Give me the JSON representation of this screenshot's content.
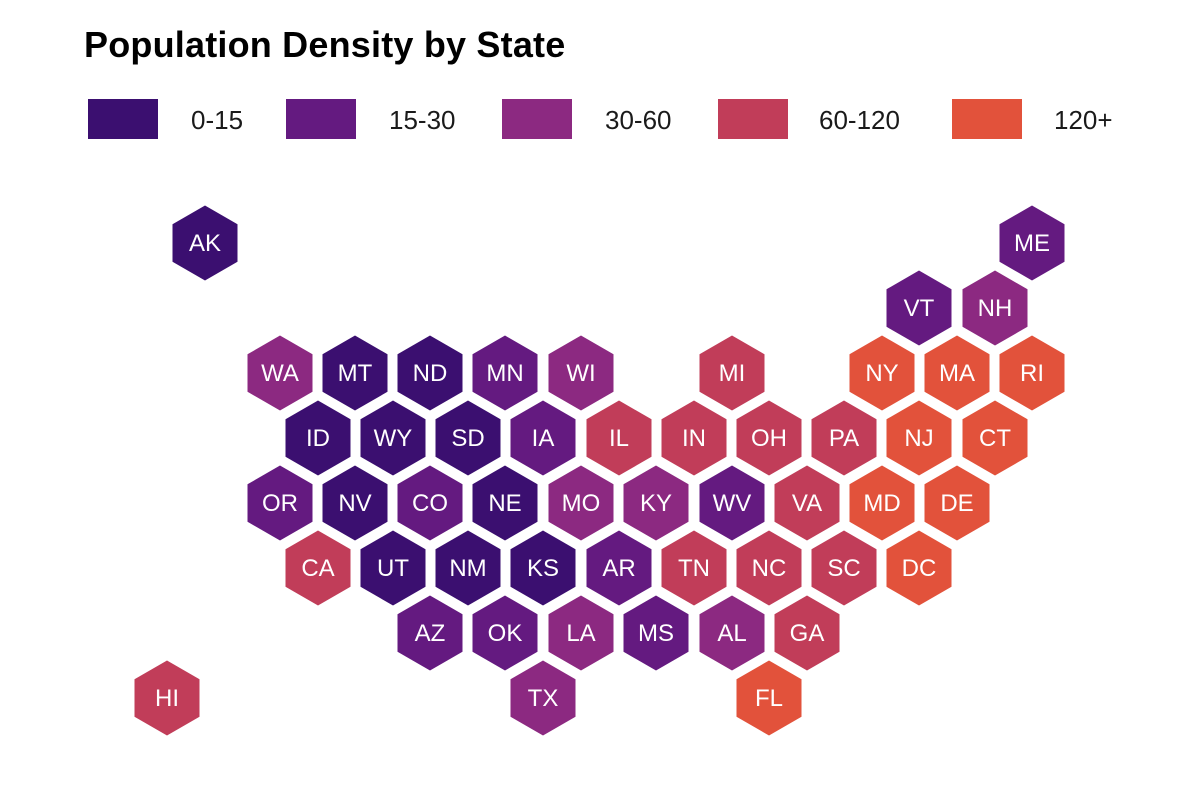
{
  "title": "Population Density by State",
  "colors": {
    "0-15": "#3b0f70",
    "15-30": "#641a80",
    "30-60": "#8c2981",
    "60-120": "#c13d59",
    "120+": "#e2523b"
  },
  "legend": [
    {
      "label": "0-15",
      "bin": "0-15"
    },
    {
      "label": "15-30",
      "bin": "15-30"
    },
    {
      "label": "30-60",
      "bin": "30-60"
    },
    {
      "label": "60-120",
      "bin": "60-120"
    },
    {
      "label": "120+",
      "bin": "120+"
    }
  ],
  "states": [
    {
      "abbr": "AK",
      "bin": "0-15"
    },
    {
      "abbr": "ME",
      "bin": "15-30"
    },
    {
      "abbr": "VT",
      "bin": "15-30"
    },
    {
      "abbr": "NH",
      "bin": "30-60"
    },
    {
      "abbr": "WA",
      "bin": "30-60"
    },
    {
      "abbr": "MT",
      "bin": "0-15"
    },
    {
      "abbr": "ND",
      "bin": "0-15"
    },
    {
      "abbr": "MN",
      "bin": "15-30"
    },
    {
      "abbr": "WI",
      "bin": "30-60"
    },
    {
      "abbr": "MI",
      "bin": "60-120"
    },
    {
      "abbr": "NY",
      "bin": "120+"
    },
    {
      "abbr": "MA",
      "bin": "120+"
    },
    {
      "abbr": "RI",
      "bin": "120+"
    },
    {
      "abbr": "ID",
      "bin": "0-15"
    },
    {
      "abbr": "WY",
      "bin": "0-15"
    },
    {
      "abbr": "SD",
      "bin": "0-15"
    },
    {
      "abbr": "IA",
      "bin": "15-30"
    },
    {
      "abbr": "IL",
      "bin": "60-120"
    },
    {
      "abbr": "IN",
      "bin": "60-120"
    },
    {
      "abbr": "OH",
      "bin": "60-120"
    },
    {
      "abbr": "PA",
      "bin": "60-120"
    },
    {
      "abbr": "NJ",
      "bin": "120+"
    },
    {
      "abbr": "CT",
      "bin": "120+"
    },
    {
      "abbr": "OR",
      "bin": "15-30"
    },
    {
      "abbr": "NV",
      "bin": "0-15"
    },
    {
      "abbr": "CO",
      "bin": "15-30"
    },
    {
      "abbr": "NE",
      "bin": "0-15"
    },
    {
      "abbr": "MO",
      "bin": "30-60"
    },
    {
      "abbr": "KY",
      "bin": "30-60"
    },
    {
      "abbr": "WV",
      "bin": "15-30"
    },
    {
      "abbr": "VA",
      "bin": "60-120"
    },
    {
      "abbr": "MD",
      "bin": "120+"
    },
    {
      "abbr": "DE",
      "bin": "120+"
    },
    {
      "abbr": "CA",
      "bin": "60-120"
    },
    {
      "abbr": "UT",
      "bin": "0-15"
    },
    {
      "abbr": "NM",
      "bin": "0-15"
    },
    {
      "abbr": "KS",
      "bin": "0-15"
    },
    {
      "abbr": "AR",
      "bin": "15-30"
    },
    {
      "abbr": "TN",
      "bin": "60-120"
    },
    {
      "abbr": "NC",
      "bin": "60-120"
    },
    {
      "abbr": "SC",
      "bin": "60-120"
    },
    {
      "abbr": "DC",
      "bin": "120+"
    },
    {
      "abbr": "AZ",
      "bin": "15-30"
    },
    {
      "abbr": "OK",
      "bin": "15-30"
    },
    {
      "abbr": "LA",
      "bin": "30-60"
    },
    {
      "abbr": "MS",
      "bin": "15-30"
    },
    {
      "abbr": "AL",
      "bin": "30-60"
    },
    {
      "abbr": "GA",
      "bin": "60-120"
    },
    {
      "abbr": "HI",
      "bin": "60-120"
    },
    {
      "abbr": "TX",
      "bin": "30-60"
    },
    {
      "abbr": "FL",
      "bin": "120+"
    }
  ]
}
